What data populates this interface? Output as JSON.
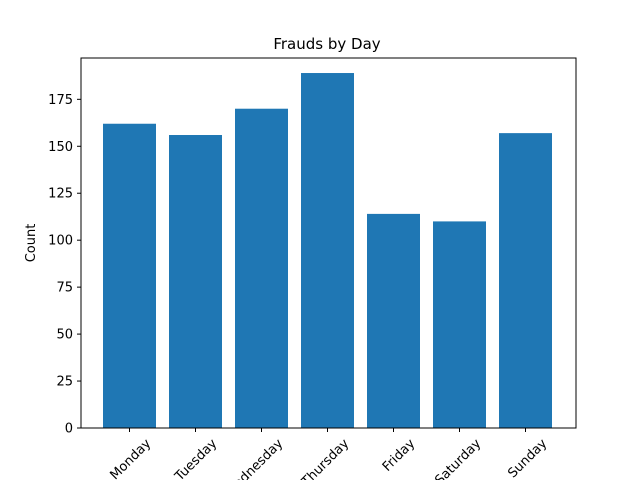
{
  "chart_data": {
    "type": "bar",
    "title": "Frauds by Day",
    "xlabel": "",
    "ylabel": "Count",
    "categories": [
      "Monday",
      "Tuesday",
      "Wednesday",
      "Thursday",
      "Friday",
      "Saturday",
      "Sunday"
    ],
    "values": [
      162,
      156,
      170,
      189,
      114,
      110,
      157
    ],
    "ylim": [
      0,
      197
    ],
    "yticks": [
      0,
      25,
      50,
      75,
      100,
      125,
      150,
      175
    ],
    "bar_color": "#1f77b4",
    "grid": false,
    "legend": "none"
  }
}
